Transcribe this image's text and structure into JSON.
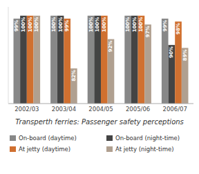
{
  "chart_data": {
    "type": "bar",
    "title": "Transperth ferries: Passenger safety perceptions",
    "categories": [
      "2002/03",
      "2003/04",
      "2004/05",
      "2005/06",
      "2006/07"
    ],
    "series": [
      {
        "name": "On-board (daytime)",
        "color": "#888888",
        "values": [
          99,
          100,
          100,
          100,
          99
        ],
        "value_labels": [
          "99%",
          "100%",
          "100%",
          "100%",
          "99%"
        ]
      },
      {
        "name": "On-board (night-time)",
        "color": "#444444",
        "values": [
          100,
          100,
          100,
          100,
          90
        ],
        "value_labels": [
          "100%",
          "100%",
          "100%",
          "100%",
          "90%"
        ]
      },
      {
        "name": "At jetty (daytime)",
        "color": "#d07030",
        "values": [
          100,
          99,
          100,
          100,
          98
        ],
        "value_labels": [
          "100%",
          "99%",
          "100%",
          "100%",
          "98%"
        ]
      },
      {
        "name": "At jetty (night-time)",
        "color": "#b0a090",
        "values": [
          100,
          82,
          92,
          97,
          89
        ],
        "value_labels": [
          "100%",
          "82%",
          "92%",
          "97%",
          "89%"
        ]
      }
    ],
    "ylim": [
      70,
      103
    ],
    "yticks": [],
    "grid": false,
    "legend": "bottom",
    "data_labels": true,
    "tick_labels": "x"
  }
}
